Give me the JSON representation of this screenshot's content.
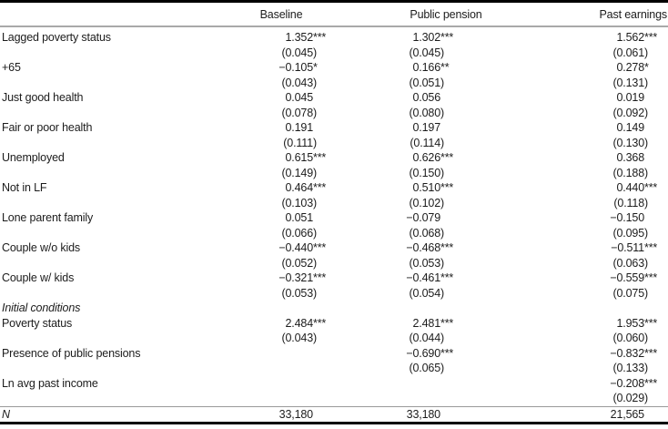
{
  "colors": {
    "background": "#ffffff",
    "text": "#1c1c1c",
    "rule_dark": "#000000",
    "rule_gray": "#a9a9a9"
  },
  "table": {
    "column_headers": [
      "Baseline",
      "Public pension",
      "Past earnings"
    ],
    "rows": [
      {
        "type": "coef",
        "label": "Lagged poverty status",
        "cells": [
          {
            "est": "1.352",
            "stars": "***",
            "se": "(0.045)"
          },
          {
            "est": "1.302",
            "stars": "***",
            "se": "(0.045)"
          },
          {
            "est": "1.562",
            "stars": "***",
            "se": "(0.061)"
          }
        ]
      },
      {
        "type": "coef",
        "label": "+65",
        "cells": [
          {
            "est": "−0.105",
            "stars": "*",
            "se": "(0.043)"
          },
          {
            "est": "0.166",
            "stars": "**",
            "se": "(0.051)"
          },
          {
            "est": "0.278",
            "stars": "*",
            "se": "(0.131)"
          }
        ]
      },
      {
        "type": "coef",
        "label": "Just good health",
        "cells": [
          {
            "est": "0.045",
            "stars": "",
            "se": "(0.078)"
          },
          {
            "est": "0.056",
            "stars": "",
            "se": "(0.080)"
          },
          {
            "est": "0.019",
            "stars": "",
            "se": "(0.092)"
          }
        ]
      },
      {
        "type": "coef",
        "label": "Fair or poor health",
        "cells": [
          {
            "est": "0.191",
            "stars": "",
            "se": "(0.111)"
          },
          {
            "est": "0.197",
            "stars": "",
            "se": "(0.114)"
          },
          {
            "est": "0.149",
            "stars": "",
            "se": "(0.130)"
          }
        ]
      },
      {
        "type": "coef",
        "label": "Unemployed",
        "cells": [
          {
            "est": "0.615",
            "stars": "***",
            "se": "(0.149)"
          },
          {
            "est": "0.626",
            "stars": "***",
            "se": "(0.150)"
          },
          {
            "est": "0.368",
            "stars": "",
            "se": "(0.188)"
          }
        ]
      },
      {
        "type": "coef",
        "label": "Not in LF",
        "cells": [
          {
            "est": "0.464",
            "stars": "***",
            "se": "(0.103)"
          },
          {
            "est": "0.510",
            "stars": "***",
            "se": "(0.102)"
          },
          {
            "est": "0.440",
            "stars": "***",
            "se": "(0.118)"
          }
        ]
      },
      {
        "type": "coef",
        "label": "Lone parent family",
        "cells": [
          {
            "est": "0.051",
            "stars": "",
            "se": "(0.066)"
          },
          {
            "est": "−0.079",
            "stars": "",
            "se": "(0.068)"
          },
          {
            "est": "−0.150",
            "stars": "",
            "se": "(0.095)"
          }
        ]
      },
      {
        "type": "coef",
        "label": "Couple w/o kids",
        "cells": [
          {
            "est": "−0.440",
            "stars": "***",
            "se": "(0.052)"
          },
          {
            "est": "−0.468",
            "stars": "***",
            "se": "(0.053)"
          },
          {
            "est": "−0.511",
            "stars": "***",
            "se": "(0.063)"
          }
        ]
      },
      {
        "type": "coef",
        "label": "Couple w/ kids",
        "cells": [
          {
            "est": "−0.321",
            "stars": "***",
            "se": "(0.053)"
          },
          {
            "est": "−0.461",
            "stars": "***",
            "se": "(0.054)"
          },
          {
            "est": "−0.559",
            "stars": "***",
            "se": "(0.075)"
          }
        ]
      },
      {
        "type": "section",
        "label": "Initial conditions"
      },
      {
        "type": "coef",
        "label": "Poverty status",
        "cells": [
          {
            "est": "2.484",
            "stars": "***",
            "se": "(0.043)"
          },
          {
            "est": "2.481",
            "stars": "***",
            "se": "(0.044)"
          },
          {
            "est": "1.953",
            "stars": "***",
            "se": "(0.060)"
          }
        ]
      },
      {
        "type": "coef",
        "label": "Presence of public pensions",
        "cells": [
          null,
          {
            "est": "−0.690",
            "stars": "***",
            "se": "(0.065)"
          },
          {
            "est": "−0.832",
            "stars": "***",
            "se": "(0.133)"
          }
        ]
      },
      {
        "type": "coef",
        "label": "Ln avg past income",
        "cells": [
          null,
          null,
          {
            "est": "−0.208",
            "stars": "***",
            "se": "(0.029)"
          }
        ]
      },
      {
        "type": "n",
        "label": "N",
        "values": [
          "33,180",
          "33,180",
          "21,565"
        ]
      }
    ]
  }
}
